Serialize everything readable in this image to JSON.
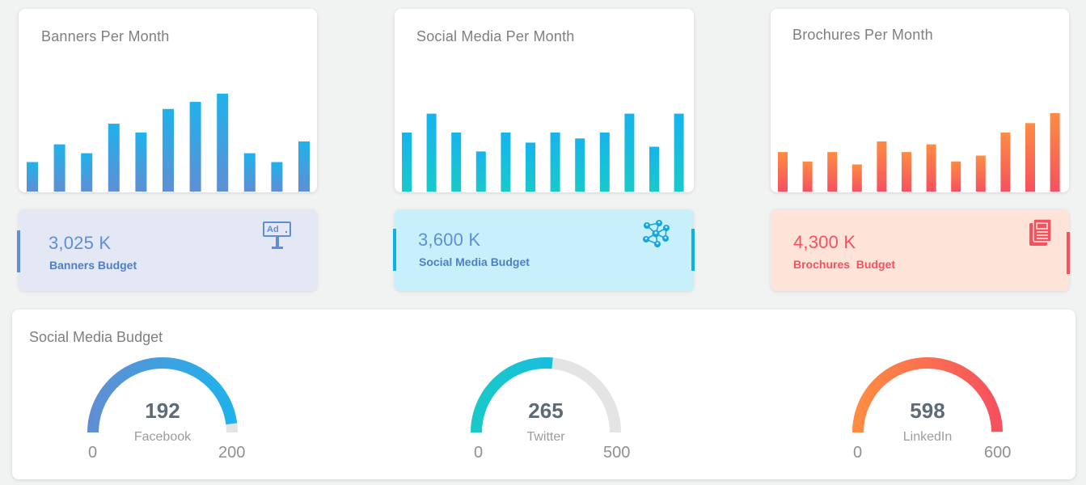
{
  "colors": {
    "banners_top": "#1fb2ec",
    "banners_bottom": "#5f8fd3",
    "social_top": "#16b4ee",
    "social_bottom": "#19c9c9",
    "brochures_top": "#ff8c42",
    "brochures_bottom": "#f5515f",
    "gauge_track": "#e4e4e4"
  },
  "chart_data": [
    {
      "type": "bar",
      "title": "Banners Per Month",
      "values": [
        5,
        8,
        6.5,
        11.5,
        10,
        14,
        15.2,
        16.6,
        6.5,
        5,
        8.5
      ],
      "ylim": [
        0,
        20
      ]
    },
    {
      "type": "bar",
      "title": "Social Media Per Month",
      "values": [
        10,
        13.2,
        10,
        6.8,
        10,
        8.3,
        10,
        9,
        10,
        13.2,
        7.6,
        13.2
      ],
      "ylim": [
        0,
        20
      ]
    },
    {
      "type": "bar",
      "title": "Brochures Per Month",
      "values": [
        6.7,
        5.1,
        6.7,
        4.6,
        8.5,
        6.7,
        8,
        5.1,
        6.1,
        10,
        11.6,
        13.3
      ],
      "ylim": [
        0,
        20
      ]
    }
  ],
  "budgets": [
    {
      "amount": "3,025 K",
      "label": "Banners Budget",
      "icon": "billboard-ad-icon"
    },
    {
      "amount": "3,600 K",
      "label": "Social Media Budget",
      "icon": "network-people-icon"
    },
    {
      "amount": "4,300 K",
      "label": "Brochures  Budget",
      "icon": "brochure-document-icon"
    }
  ],
  "gauges": {
    "title": "Social Media Budget",
    "items": [
      {
        "name": "Facebook",
        "value": 192,
        "value_text": "192",
        "min": "0",
        "max": "200",
        "max_value": 200
      },
      {
        "name": "Twitter",
        "value": 265,
        "value_text": "265",
        "min": "0",
        "max": "500",
        "max_value": 500
      },
      {
        "name": "LinkedIn",
        "value": 598,
        "value_text": "598",
        "min": "0",
        "max": "600",
        "max_value": 600
      }
    ]
  }
}
